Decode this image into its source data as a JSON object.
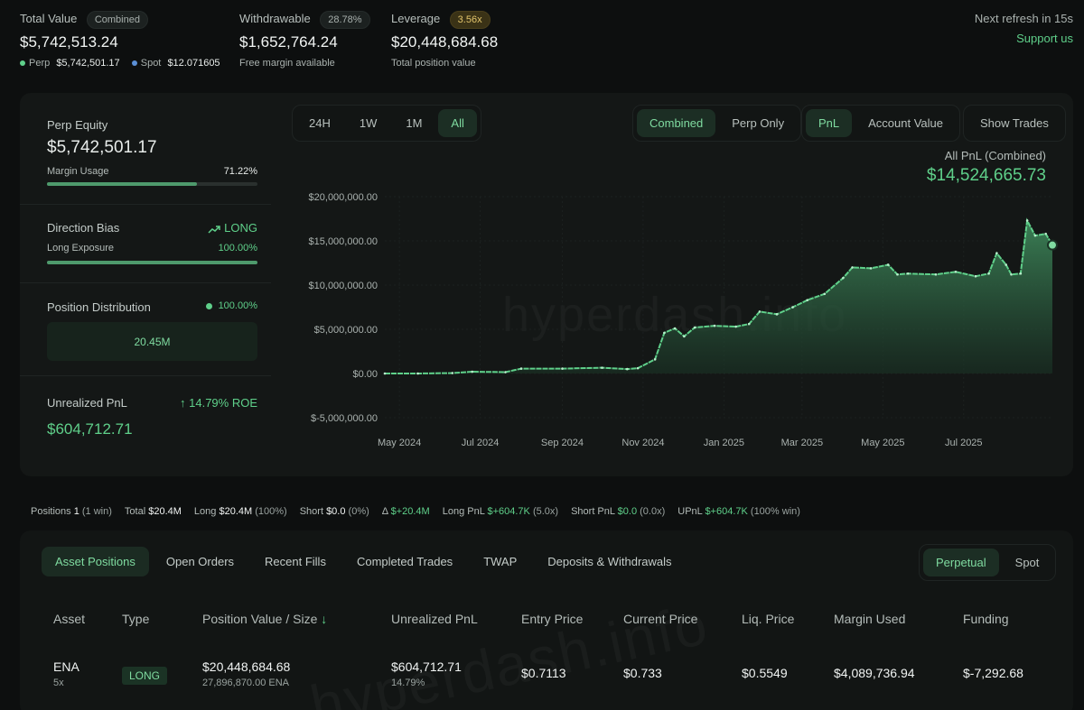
{
  "summary": {
    "total_value_label": "Total Value",
    "total_value_badge": "Combined",
    "total_value": "$5,742,513.24",
    "perp_label": "Perp",
    "perp_value": "$5,742,501.17",
    "spot_label": "Spot",
    "spot_value": "$12.071605",
    "withdrawable_label": "Withdrawable",
    "withdrawable_badge": "28.78%",
    "withdrawable_value": "$1,652,764.24",
    "withdrawable_sub": "Free margin available",
    "leverage_label": "Leverage",
    "leverage_badge": "3.56x",
    "leverage_value": "$20,448,684.68",
    "leverage_sub": "Total position value",
    "refresh": "Next refresh in 15s",
    "support": "Support us"
  },
  "left": {
    "perp_equity_label": "Perp Equity",
    "perp_equity_value": "$5,742,501.17",
    "margin_usage_label": "Margin Usage",
    "margin_usage_value": "71.22%",
    "margin_usage_fraction": 0.7122,
    "direction_bias_label": "Direction Bias",
    "direction_bias_value": "LONG",
    "long_exposure_label": "Long Exposure",
    "long_exposure_value": "100.00%",
    "long_exposure_fraction": 1.0,
    "position_dist_label": "Position Distribution",
    "position_dist_value": "100.00%",
    "position_dist_amount": "20.45M",
    "upnl_label": "Unrealized PnL",
    "upnl_roe": "14.79% ROE",
    "upnl_value": "$604,712.71"
  },
  "chart_controls": {
    "ranges": [
      "24H",
      "1W",
      "1M",
      "All"
    ],
    "active_range": "All",
    "modes": [
      "Combined",
      "Perp Only"
    ],
    "active_mode": "Combined",
    "metrics": [
      "PnL",
      "Account Value"
    ],
    "active_metric": "PnL",
    "show_trades": "Show Trades"
  },
  "chart_header": {
    "label": "All PnL (Combined)",
    "value": "$14,524,665.73",
    "watermark": "hyperdash.info"
  },
  "chart_data": {
    "type": "area",
    "y_ticks": [
      "$20,000,000.00",
      "$15,000,000.00",
      "$10,000,000.00",
      "$5,000,000.00",
      "$0.00",
      "$-5,000,000.00"
    ],
    "y_tick_values": [
      20000000,
      15000000,
      10000000,
      5000000,
      0,
      -5000000
    ],
    "ylim": [
      -5000000,
      20000000
    ],
    "x_ticks": [
      "May 2024",
      "Jul 2024",
      "Sep 2024",
      "Nov 2024",
      "Jan 2025",
      "Mar 2025",
      "May 2025",
      "Jul 2025"
    ],
    "x_tick_dates": [
      "2024-05-01",
      "2024-07-01",
      "2024-09-01",
      "2024-11-01",
      "2025-01-01",
      "2025-03-01",
      "2025-05-01",
      "2025-07-01"
    ],
    "grid": true,
    "series": [
      {
        "color": "#5fd08a",
        "points": [
          [
            "2024-04-20",
            0
          ],
          [
            "2024-05-15",
            0
          ],
          [
            "2024-06-10",
            50000
          ],
          [
            "2024-06-25",
            200000
          ],
          [
            "2024-07-20",
            150000
          ],
          [
            "2024-08-01",
            550000
          ],
          [
            "2024-09-01",
            550000
          ],
          [
            "2024-10-01",
            650000
          ],
          [
            "2024-10-20",
            500000
          ],
          [
            "2024-10-28",
            600000
          ],
          [
            "2024-11-10",
            1600000
          ],
          [
            "2024-11-17",
            4600000
          ],
          [
            "2024-11-25",
            5100000
          ],
          [
            "2024-12-02",
            4200000
          ],
          [
            "2024-12-10",
            5200000
          ],
          [
            "2024-12-25",
            5400000
          ],
          [
            "2025-01-10",
            5300000
          ],
          [
            "2025-01-20",
            5600000
          ],
          [
            "2025-01-28",
            7000000
          ],
          [
            "2025-02-10",
            6700000
          ],
          [
            "2025-02-22",
            7500000
          ],
          [
            "2025-03-05",
            8300000
          ],
          [
            "2025-03-18",
            9000000
          ],
          [
            "2025-04-01",
            10800000
          ],
          [
            "2025-04-08",
            12000000
          ],
          [
            "2025-04-22",
            11900000
          ],
          [
            "2025-05-05",
            12300000
          ],
          [
            "2025-05-12",
            11200000
          ],
          [
            "2025-05-20",
            11300000
          ],
          [
            "2025-06-10",
            11200000
          ],
          [
            "2025-06-25",
            11500000
          ],
          [
            "2025-07-10",
            11000000
          ],
          [
            "2025-07-20",
            11300000
          ],
          [
            "2025-07-26",
            13600000
          ],
          [
            "2025-08-02",
            12300000
          ],
          [
            "2025-08-06",
            11200000
          ],
          [
            "2025-08-13",
            11300000
          ],
          [
            "2025-08-18",
            17300000
          ],
          [
            "2025-08-24",
            15600000
          ],
          [
            "2025-09-01",
            15800000
          ],
          [
            "2025-09-06",
            14524665.73
          ]
        ]
      }
    ]
  },
  "stats": {
    "positions_label": "Positions",
    "positions_value": "1",
    "positions_win": "(1 win)",
    "total_label": "Total",
    "total_value": "$20.4M",
    "long_label": "Long",
    "long_value": "$20.4M",
    "long_pct": "(100%)",
    "short_label": "Short",
    "short_value": "$0.0",
    "short_pct": "(0%)",
    "delta_label": "Δ",
    "delta_value": "$+20.4M",
    "long_pnl_label": "Long PnL",
    "long_pnl_value": "$+604.7K",
    "long_pnl_x": "(5.0x)",
    "short_pnl_label": "Short PnL",
    "short_pnl_value": "$0.0",
    "short_pnl_x": "(0.0x)",
    "upnl_label": "UPnL",
    "upnl_value": "$+604.7K",
    "upnl_win": "(100% win)"
  },
  "lower_tabs": {
    "items": [
      "Asset Positions",
      "Open Orders",
      "Recent Fills",
      "Completed Trades",
      "TWAP",
      "Deposits & Withdrawals"
    ],
    "active": "Asset Positions",
    "market_toggle": [
      "Perpetual",
      "Spot"
    ],
    "active_market": "Perpetual"
  },
  "table": {
    "headers": [
      "Asset",
      "Type",
      "Position Value / Size",
      "Unrealized PnL",
      "Entry Price",
      "Current Price",
      "Liq. Price",
      "Margin Used",
      "Funding"
    ],
    "rows": [
      {
        "asset": "ENA",
        "leverage": "5x",
        "type": "LONG",
        "position_value": "$20,448,684.68",
        "position_size": "27,896,870.00 ENA",
        "upnl": "$604,712.71",
        "upnl_pct": "14.79%",
        "entry": "$0.7113",
        "current": "$0.733",
        "liq": "$0.5549",
        "margin": "$4,089,736.94",
        "funding": "$-7,292.68"
      }
    ]
  }
}
